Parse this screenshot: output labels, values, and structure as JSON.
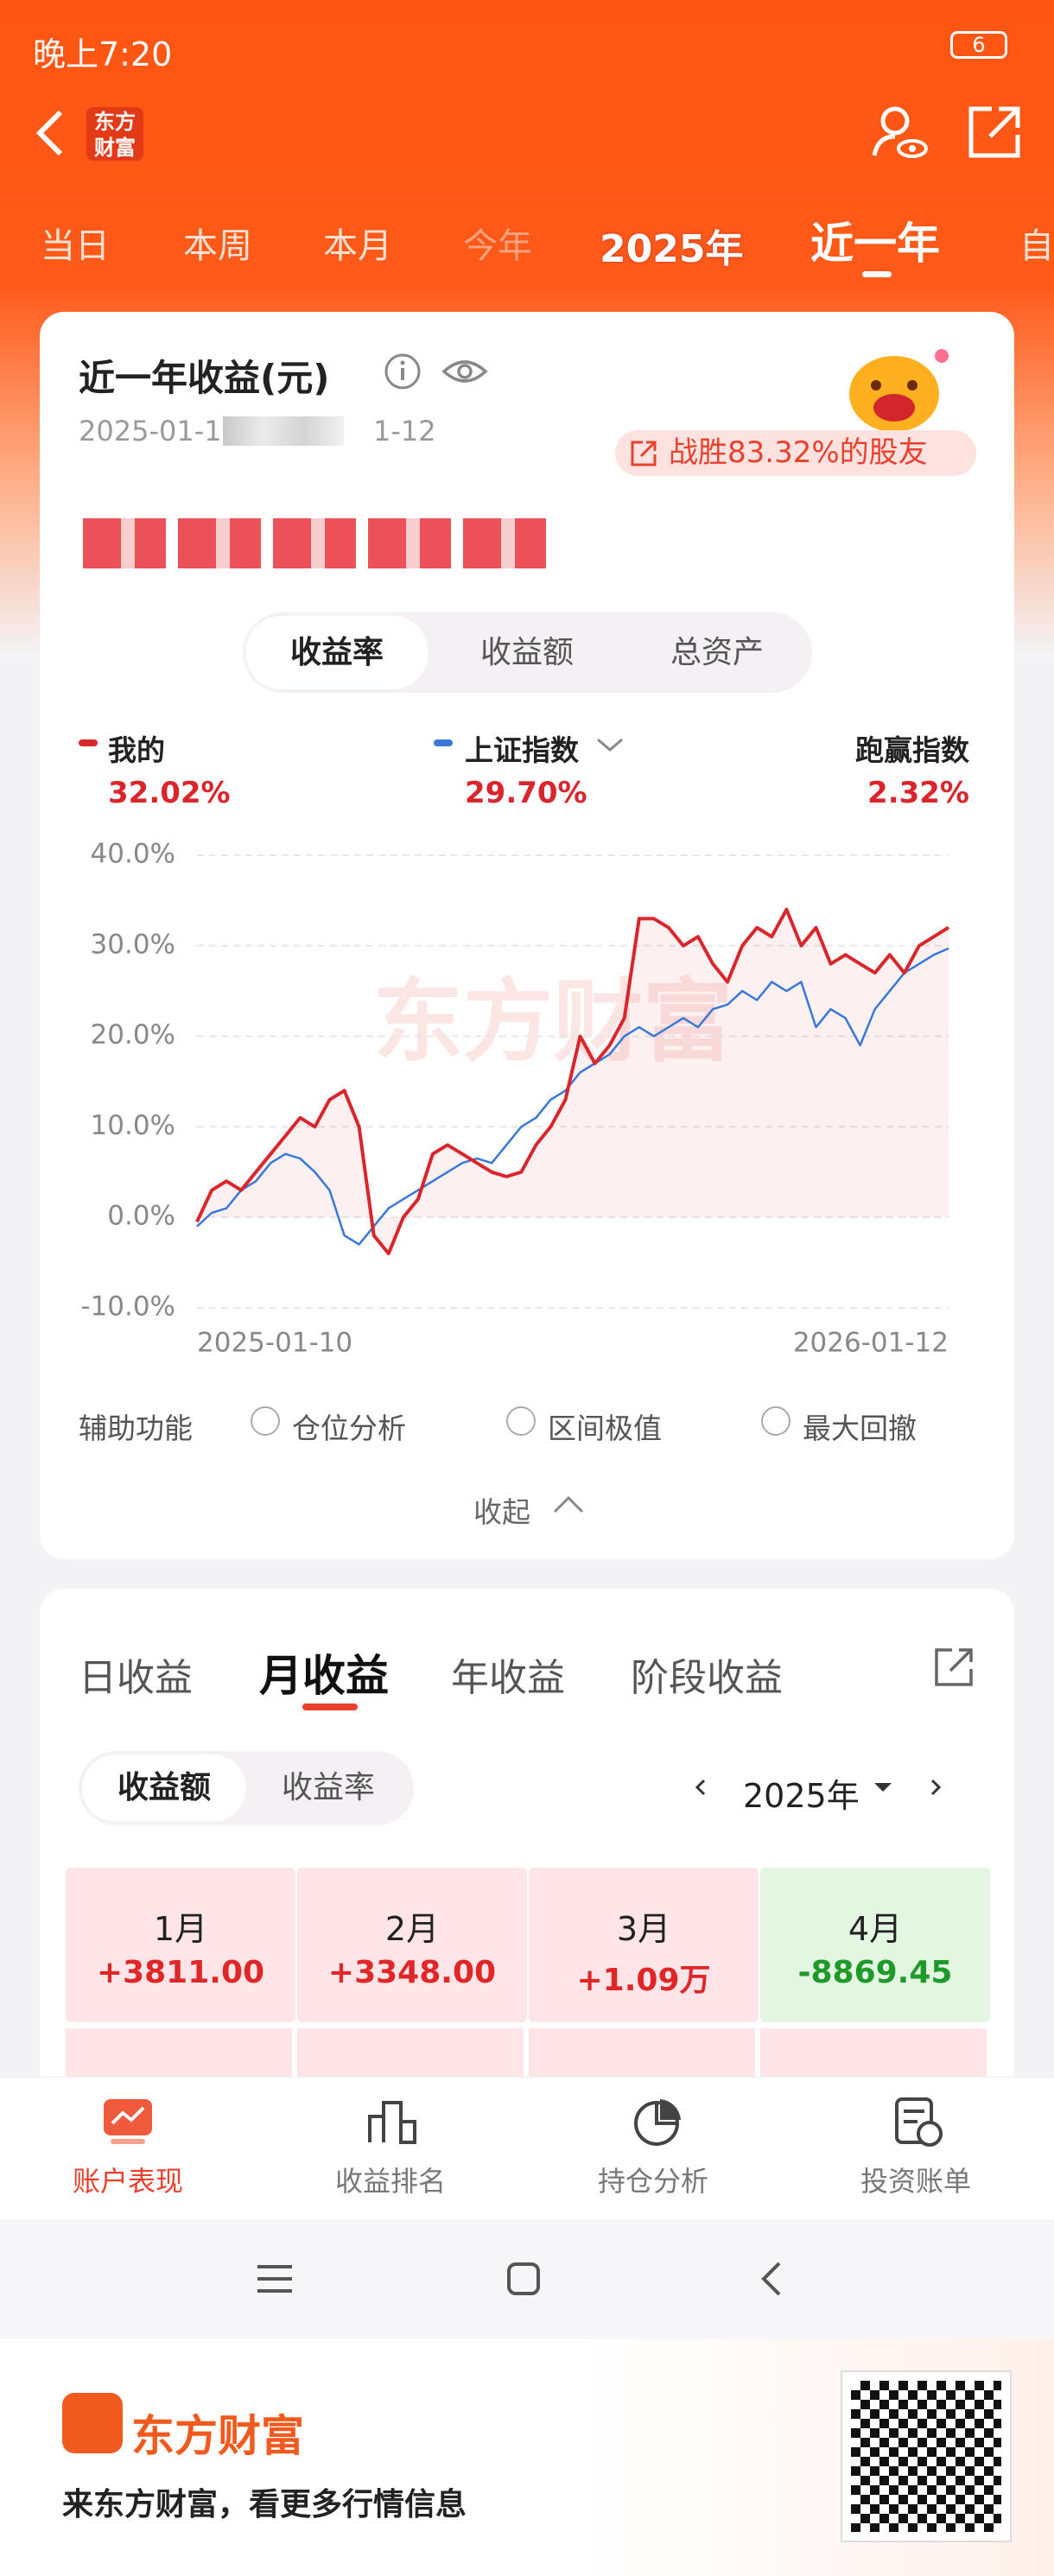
{
  "status_bar": {
    "time": "晚上7:20",
    "battery": "6"
  },
  "header": {
    "logo": "东方财富"
  },
  "period_tabs": [
    "当日",
    "本周",
    "本月",
    "今年",
    "2025年",
    "近一年",
    "自"
  ],
  "period_selected": 5,
  "performance_card": {
    "title": "近一年收益(元)",
    "date_start": "2025-01-1",
    "date_end": "1-12",
    "beat_badge": "战胜83.32%的股友",
    "mode_tabs": [
      "收益率",
      "收益额",
      "总资产"
    ],
    "mode_selected": 0,
    "summary": {
      "mine": "32.02%",
      "index": "29.70%",
      "excess_label": "跑赢指数",
      "excess": "2.32%"
    },
    "chart": {
      "type": "line",
      "watermark": "东方财富",
      "categories": [
        "2025-01-10",
        null,
        null,
        null,
        null,
        null,
        null,
        null,
        null,
        null,
        null,
        null,
        null,
        null,
        null,
        null,
        null,
        null,
        null,
        null,
        null,
        null,
        null,
        null,
        null,
        null,
        null,
        null,
        null,
        null,
        null,
        null,
        null,
        null,
        null,
        null,
        null,
        null,
        null,
        null,
        null,
        null,
        null,
        null,
        null,
        null,
        null,
        null,
        null,
        null,
        null,
        "2026-01-12"
      ],
      "series": [
        {
          "name": "我的",
          "color": "#d9262c",
          "values": [
            -0.5,
            3,
            4,
            3,
            5,
            7,
            9,
            11,
            10,
            13,
            14,
            10,
            -2,
            -4,
            0,
            2,
            7,
            8,
            7,
            6,
            5,
            4.5,
            5,
            8,
            10,
            13,
            20,
            17,
            19,
            22,
            33,
            33,
            32,
            30,
            31,
            28,
            26,
            30,
            32,
            31,
            34,
            30,
            32,
            28,
            29,
            28,
            27,
            29,
            27,
            30,
            31,
            32.02
          ]
        },
        {
          "name": "上证指数",
          "color": "#3a78d8",
          "values": [
            -1,
            0.5,
            1,
            3,
            4,
            6,
            7,
            6.5,
            5,
            3,
            -2,
            -3,
            -1,
            1,
            2,
            3,
            4,
            5,
            6,
            6.5,
            6,
            8,
            10,
            11,
            13,
            14,
            16,
            17,
            18,
            20,
            21,
            20,
            21,
            22,
            21,
            23,
            23.5,
            25,
            24,
            26,
            25,
            26,
            21,
            23,
            22,
            19,
            23,
            25,
            27,
            28,
            29,
            29.7
          ]
        }
      ],
      "ylim": [
        -10,
        40
      ],
      "yticks": [
        {
          "value": -10,
          "label": "-10.0%"
        },
        {
          "value": 0,
          "label": "0.0%"
        },
        {
          "value": 10,
          "label": "10.0%"
        },
        {
          "value": 20,
          "label": "20.0%"
        },
        {
          "value": 30,
          "label": "30.0%"
        },
        {
          "value": 40,
          "label": "40.0%"
        }
      ],
      "grid": true
    },
    "tools_label": "辅助功能",
    "tools": [
      "仓位分析",
      "区间极值",
      "最大回撤"
    ],
    "collapse": "收起"
  },
  "monthly_card": {
    "tabs": [
      "日收益",
      "月收益",
      "年收益",
      "阶段收益"
    ],
    "tab_selected": 1,
    "toggle": [
      "收益额",
      "收益率"
    ],
    "toggle_selected": 0,
    "year": "2025年",
    "months": [
      {
        "month": "1月",
        "value": "+3811.00"
      },
      {
        "month": "2月",
        "value": "+3348.00"
      },
      {
        "month": "3月",
        "value": "+1.09万"
      },
      {
        "month": "4月",
        "value": "-8869.45"
      }
    ]
  },
  "bottom_nav": [
    "账户表现",
    "收益排名",
    "持仓分析",
    "投资账单"
  ],
  "bottom_selected": 0,
  "footer": {
    "brand": "东方财富",
    "slogan": "来东方财富，看更多行情信息"
  }
}
